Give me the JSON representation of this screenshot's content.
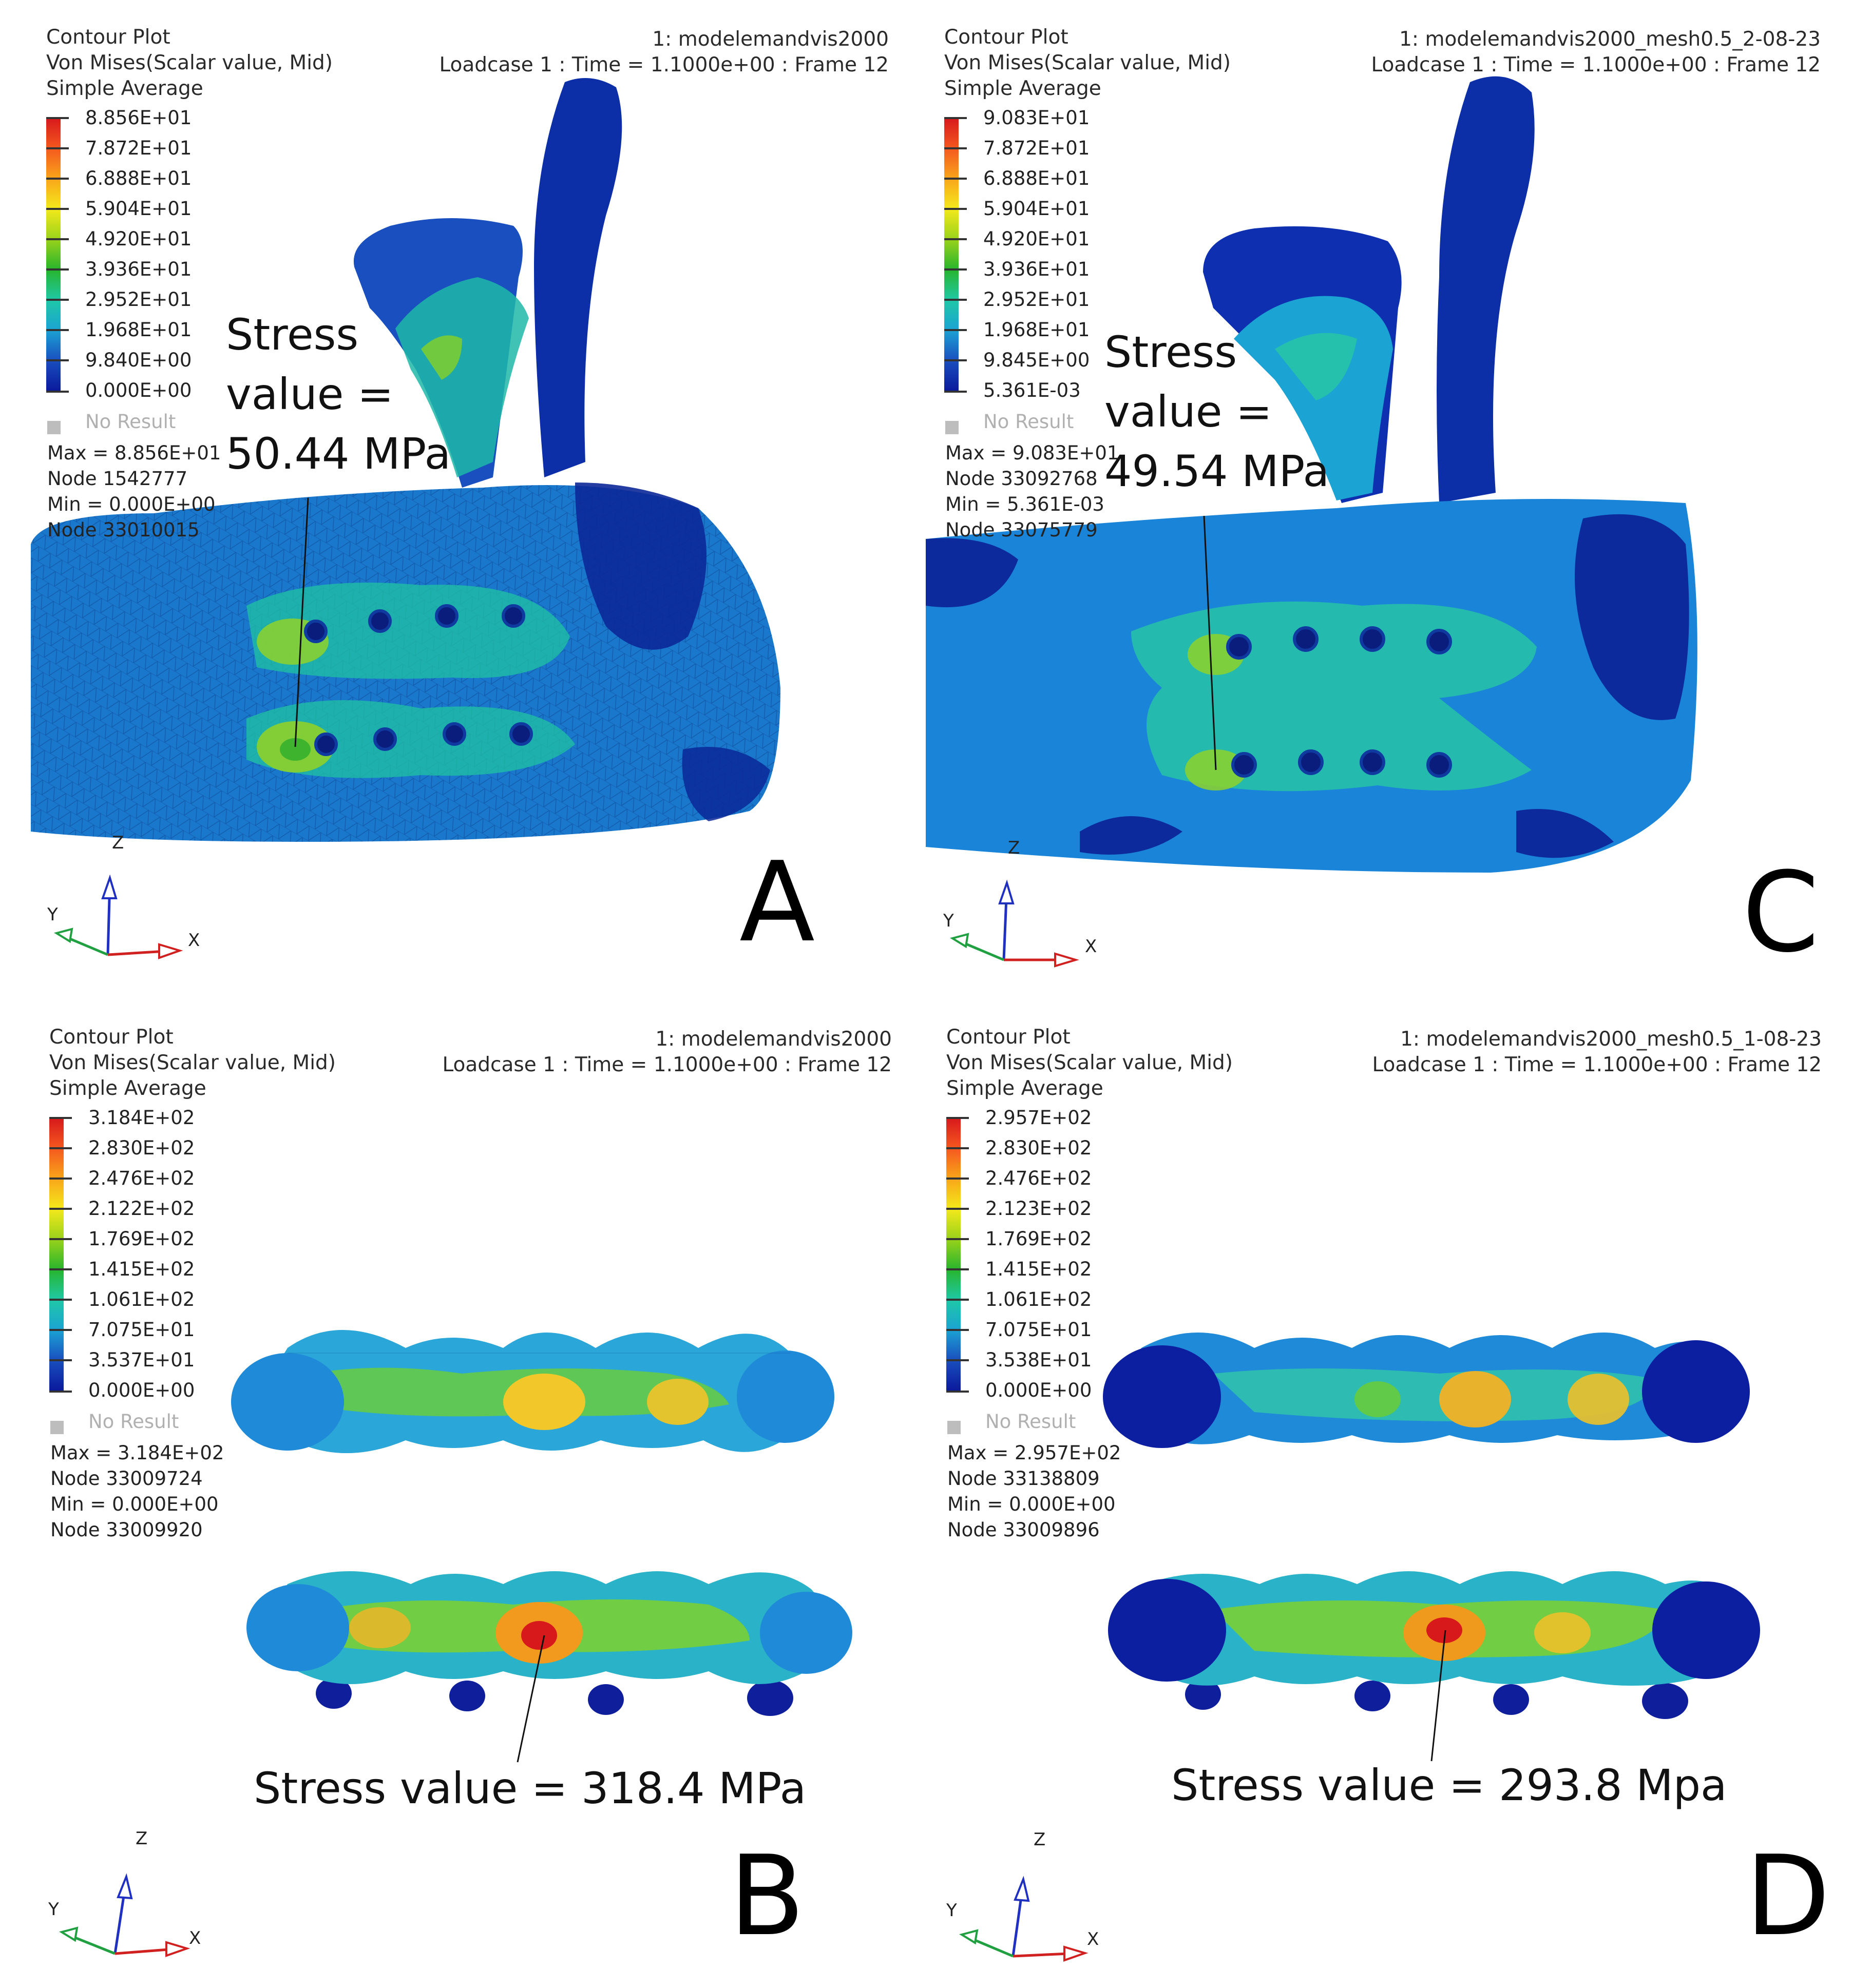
{
  "legend_colors": [
    "#d7191c",
    "#f4581e",
    "#f9a51a",
    "#f4e91b",
    "#9ad21b",
    "#27b52c",
    "#1fc8a6",
    "#1ba3d3",
    "#1a4fbf",
    "#0a1a9c"
  ],
  "panels": {
    "a": {
      "letter": "A",
      "header_left": [
        "Contour Plot",
        "Von Mises(Scalar value, Mid)",
        "Simple Average"
      ],
      "header_right": [
        "1: modelemandvis2000",
        "Loadcase 1 : Time = 1.1000e+00 : Frame 12"
      ],
      "legend_values": [
        "8.856E+01",
        "7.872E+01",
        "6.888E+01",
        "5.904E+01",
        "4.920E+01",
        "3.936E+01",
        "2.952E+01",
        "1.968E+01",
        "9.840E+00",
        "0.000E+00"
      ],
      "no_result": "No Result",
      "stats": [
        "Max = 8.856E+01",
        "Node 1542777",
        "Min = 0.000E+00",
        "Node 33010015"
      ],
      "callout": [
        "Stress",
        "value =",
        "50.44 MPa"
      ],
      "axes": {
        "z": "Z",
        "y": "Y",
        "x": "X"
      }
    },
    "c": {
      "letter": "C",
      "header_left": [
        "Contour Plot",
        "Von Mises(Scalar value, Mid)",
        "Simple Average"
      ],
      "header_right": [
        "1: modelemandvis2000_mesh0.5_2-08-23",
        "Loadcase 1 : Time = 1.1000e+00 : Frame 12"
      ],
      "legend_values": [
        "9.083E+01",
        "7.872E+01",
        "6.888E+01",
        "5.904E+01",
        "4.920E+01",
        "3.936E+01",
        "2.952E+01",
        "1.968E+01",
        "9.845E+00",
        "5.361E-03"
      ],
      "no_result": "No Result",
      "stats": [
        "Max = 9.083E+01",
        "Node 33092768",
        "Min = 5.361E-03",
        "Node 33075779"
      ],
      "callout": [
        "Stress",
        "value =",
        "49.54 MPa"
      ],
      "axes": {
        "z": "Z",
        "y": "Y",
        "x": "X"
      }
    },
    "b": {
      "letter": "B",
      "header_left": [
        "Contour Plot",
        "Von Mises(Scalar value, Mid)",
        "Simple Average"
      ],
      "header_right": [
        "1: modelemandvis2000",
        "Loadcase 1 : Time = 1.1000e+00 : Frame 12"
      ],
      "legend_values": [
        "3.184E+02",
        "2.830E+02",
        "2.476E+02",
        "2.122E+02",
        "1.769E+02",
        "1.415E+02",
        "1.061E+02",
        "7.075E+01",
        "3.537E+01",
        "0.000E+00"
      ],
      "no_result": "No Result",
      "stats": [
        "Max = 3.184E+02",
        "Node 33009724",
        "Min = 0.000E+00",
        "Node 33009920"
      ],
      "callout": [
        "Stress value = 318.4 MPa"
      ],
      "axes": {
        "z": "Z",
        "y": "Y",
        "x": "X"
      }
    },
    "d": {
      "letter": "D",
      "header_left": [
        "Contour Plot",
        "Von Mises(Scalar value, Mid)",
        "Simple Average"
      ],
      "header_right": [
        "1: modelemandvis2000_mesh0.5_1-08-23",
        "Loadcase 1 : Time = 1.1000e+00 : Frame 12"
      ],
      "legend_values": [
        "2.957E+02",
        "2.830E+02",
        "2.476E+02",
        "2.123E+02",
        "1.769E+02",
        "1.415E+02",
        "1.061E+02",
        "7.075E+01",
        "3.538E+01",
        "0.000E+00"
      ],
      "no_result": "No Result",
      "stats": [
        "Max = 2.957E+02",
        "Node 33138809",
        "Min = 0.000E+00",
        "Node 33009896"
      ],
      "callout": [
        "Stress value = 293.8 Mpa"
      ],
      "axes": {
        "z": "Z",
        "y": "Y",
        "x": "X"
      }
    }
  }
}
